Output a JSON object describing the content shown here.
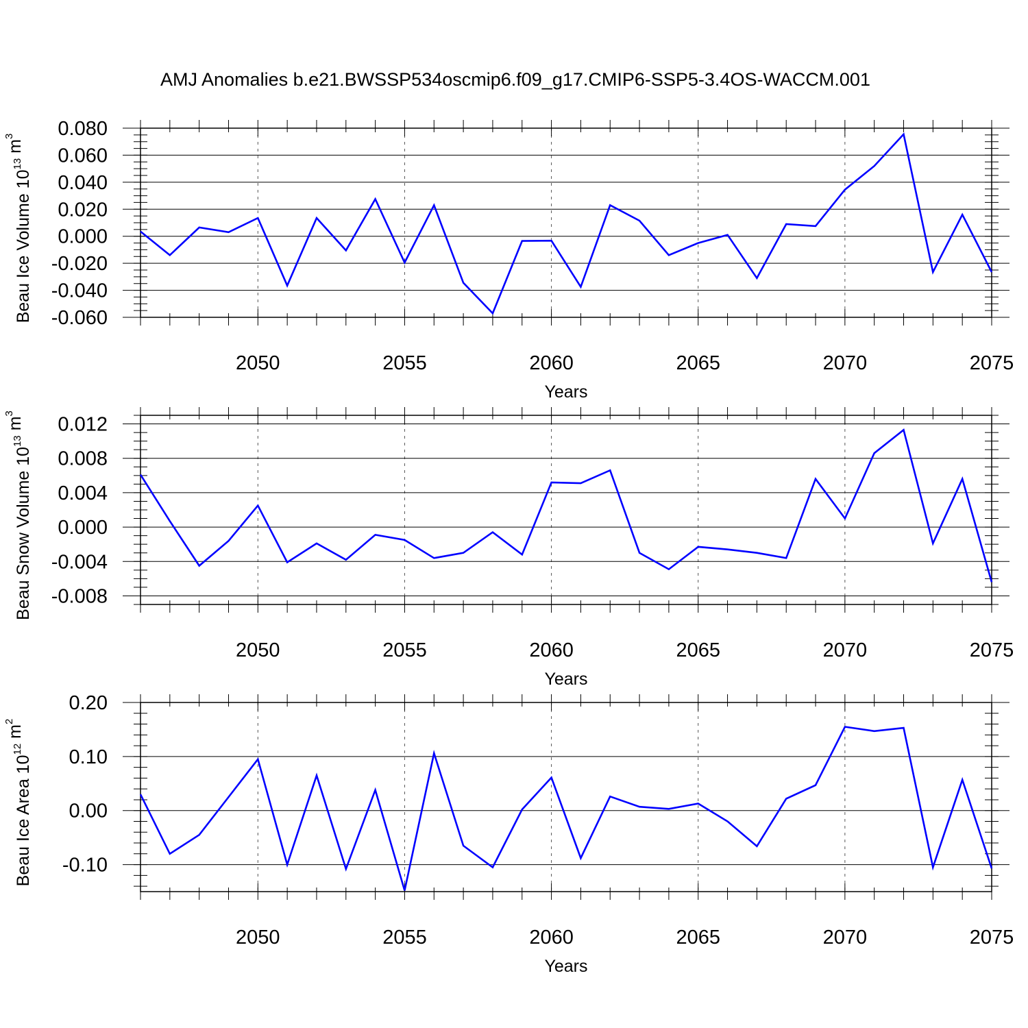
{
  "title": "AMJ Anomalies b.e21.BWSSP534oscmip6.f09_g17.CMIP6-SSP5-3.4OS-WACCM.001",
  "line_color": "#0000ff",
  "chart_data": [
    {
      "type": "line",
      "id": "ice-volume",
      "title": "AMJ Anomalies b.e21.BWSSP534oscmip6.f09_g17.CMIP6-SSP5-3.4OS-WACCM.001",
      "ylabel": "Beau Ice Volume",
      "ylabel_unit_base": "10",
      "ylabel_unit_exp": "13",
      "ylabel_unit": "m",
      "ylabel_unit_unit_exp": "3",
      "xlabel": "Years",
      "xlim": [
        2046,
        2075
      ],
      "ylim": [
        -0.06,
        0.08
      ],
      "x_ticks": [
        2050,
        2055,
        2060,
        2065,
        2070,
        2075
      ],
      "x_tick_labels": [
        "2050",
        "2055",
        "2060",
        "2065",
        "2070",
        "2075"
      ],
      "y_ticks": [
        -0.06,
        -0.04,
        -0.02,
        0.0,
        0.02,
        0.04,
        0.06,
        0.08
      ],
      "y_tick_labels": [
        "-0.060",
        "-0.040",
        "-0.020",
        "0.000",
        "0.020",
        "0.040",
        "0.060",
        "0.080"
      ],
      "y_minor_step": 0.005,
      "grid": "dashed vertical at major x ticks",
      "x": [
        2046,
        2047,
        2048,
        2049,
        2050,
        2051,
        2052,
        2053,
        2054,
        2055,
        2056,
        2057,
        2058,
        2059,
        2060,
        2061,
        2062,
        2063,
        2064,
        2065,
        2066,
        2067,
        2068,
        2069,
        2070,
        2071,
        2072,
        2073,
        2074,
        2075
      ],
      "series": [
        {
          "name": "Beau Ice Volume",
          "values": [
            0.0035,
            -0.014,
            0.0065,
            0.003,
            0.0135,
            -0.0365,
            0.0135,
            -0.0105,
            0.0275,
            -0.0195,
            0.023,
            -0.0345,
            -0.057,
            -0.0035,
            -0.0033,
            -0.0375,
            0.023,
            0.0115,
            -0.014,
            -0.005,
            0.001,
            -0.031,
            0.009,
            0.0075,
            0.0345,
            0.052,
            0.0755,
            -0.0265,
            0.016,
            -0.0265
          ]
        }
      ]
    },
    {
      "type": "line",
      "id": "snow-volume",
      "ylabel": "Beau Snow Volume",
      "ylabel_unit_base": "10",
      "ylabel_unit_exp": "13",
      "ylabel_unit": "m",
      "ylabel_unit_unit_exp": "3",
      "xlabel": "Years",
      "xlim": [
        2046,
        2075
      ],
      "ylim": [
        -0.009,
        0.013
      ],
      "x_ticks": [
        2050,
        2055,
        2060,
        2065,
        2070,
        2075
      ],
      "x_tick_labels": [
        "2050",
        "2055",
        "2060",
        "2065",
        "2070",
        "2075"
      ],
      "y_ticks": [
        -0.008,
        -0.004,
        0.0,
        0.004,
        0.008,
        0.012
      ],
      "y_tick_labels": [
        "-0.008",
        "-0.004",
        "0.000",
        "0.004",
        "0.008",
        "0.012"
      ],
      "y_minor_step": 0.001,
      "grid": "dashed vertical at major x ticks",
      "x": [
        2046,
        2047,
        2048,
        2049,
        2050,
        2051,
        2052,
        2053,
        2054,
        2055,
        2056,
        2057,
        2058,
        2059,
        2060,
        2061,
        2062,
        2063,
        2064,
        2065,
        2066,
        2067,
        2068,
        2069,
        2070,
        2071,
        2072,
        2073,
        2074,
        2075
      ],
      "series": [
        {
          "name": "Beau Snow Volume",
          "values": [
            0.0061,
            0.0007,
            -0.0045,
            -0.0016,
            0.0025,
            -0.0041,
            -0.0019,
            -0.0038,
            -0.0009,
            -0.0015,
            -0.0036,
            -0.003,
            -0.0006,
            -0.0032,
            0.0052,
            0.0051,
            0.0066,
            -0.003,
            -0.0049,
            -0.0023,
            -0.0026,
            -0.003,
            -0.0036,
            0.0056,
            0.001,
            0.0086,
            0.0113,
            -0.0019,
            0.0056,
            -0.0064
          ]
        }
      ]
    },
    {
      "type": "line",
      "id": "ice-area",
      "ylabel": "Beau Ice Area",
      "ylabel_unit_base": "10",
      "ylabel_unit_exp": "12",
      "ylabel_unit": "m",
      "ylabel_unit_unit_exp": "2",
      "xlabel": "Years",
      "xlim": [
        2046,
        2075
      ],
      "ylim": [
        -0.15,
        0.2
      ],
      "x_ticks": [
        2050,
        2055,
        2060,
        2065,
        2070,
        2075
      ],
      "x_tick_labels": [
        "2050",
        "2055",
        "2060",
        "2065",
        "2070",
        "2075"
      ],
      "y_ticks": [
        -0.1,
        0.0,
        0.1,
        0.2
      ],
      "y_tick_labels": [
        "-0.10",
        "0.00",
        "0.10",
        "0.20"
      ],
      "y_minor_step": 0.02,
      "grid": "dashed vertical at major x ticks",
      "x": [
        2046,
        2047,
        2048,
        2049,
        2050,
        2051,
        2052,
        2053,
        2054,
        2055,
        2056,
        2057,
        2058,
        2059,
        2060,
        2061,
        2062,
        2063,
        2064,
        2065,
        2066,
        2067,
        2068,
        2069,
        2070,
        2071,
        2072,
        2073,
        2074,
        2075
      ],
      "series": [
        {
          "name": "Beau Ice Area",
          "values": [
            0.03,
            -0.08,
            -0.045,
            0.025,
            0.095,
            -0.1,
            0.065,
            -0.108,
            0.038,
            -0.148,
            0.106,
            -0.065,
            -0.105,
            0.002,
            0.061,
            -0.088,
            0.026,
            0.007,
            0.003,
            0.013,
            -0.02,
            -0.066,
            0.022,
            0.047,
            0.155,
            0.147,
            0.153,
            -0.105,
            0.057,
            -0.107
          ]
        }
      ]
    }
  ]
}
